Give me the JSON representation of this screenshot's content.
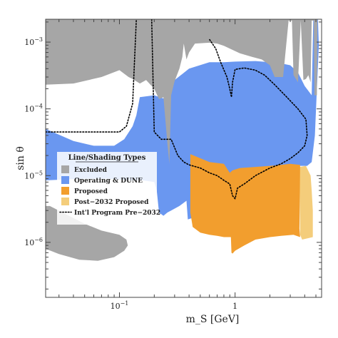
{
  "chart_data": {
    "type": "area",
    "title": "",
    "xlabel": "m_S [GeV]",
    "ylabel": "sin θ",
    "xscale": "log",
    "yscale": "log",
    "xlim": [
      0.023,
      5.6
    ],
    "ylim": [
      1.5e-07,
      0.0022
    ],
    "x_ticks": [
      {
        "value": 0.1,
        "base": "10",
        "exp": "−1"
      },
      {
        "value": 1,
        "label": "1"
      }
    ],
    "y_ticks": [
      {
        "value": 0.001,
        "base": "10",
        "exp": "−3"
      },
      {
        "value": 0.0001,
        "base": "10",
        "exp": "−4"
      },
      {
        "value": 1e-05,
        "base": "10",
        "exp": "−5"
      },
      {
        "value": 1e-06,
        "base": "10",
        "exp": "−6"
      }
    ],
    "grid": false,
    "legend": {
      "title": "Line/Shading Types",
      "placement": "center-left",
      "entries": [
        {
          "label": "Excluded",
          "kind": "patch",
          "color": "#a6a6a6"
        },
        {
          "label": "Operating & DUNE",
          "kind": "patch",
          "color": "#6a97f0"
        },
        {
          "label": "Proposed",
          "kind": "patch",
          "color": "#f29e2e"
        },
        {
          "label": "Post−2032 Proposed",
          "kind": "patch",
          "color": "#f4cd7b"
        },
        {
          "label": "Int'l Program Pre−2032",
          "kind": "dotted-line",
          "color": "#000000"
        }
      ]
    },
    "regions": [
      {
        "name": "Post−2032 Proposed",
        "color": "#f4cd7b",
        "points": [
          [
            3.6,
            1.35e-05
          ],
          [
            4.1,
            1.4e-05
          ],
          [
            4.5,
            1e-05
          ],
          [
            4.6,
            6e-06
          ],
          [
            4.7,
            3e-06
          ],
          [
            4.7,
            1.2e-06
          ],
          [
            3.8,
            1.1e-06
          ],
          [
            3.65,
            1.3e-06
          ]
        ]
      },
      {
        "name": "Operating & DUNE",
        "color": "#6a97f0",
        "points": [
          [
            0.023,
            5e-05
          ],
          [
            0.04,
            3.3e-05
          ],
          [
            0.06,
            2.8e-05
          ],
          [
            0.09,
            2.8e-05
          ],
          [
            0.11,
            3.5e-05
          ],
          [
            0.13,
            5.5e-05
          ],
          [
            0.14,
            8e-05
          ],
          [
            0.15,
            0.00015
          ],
          [
            0.2,
            0.00016
          ],
          [
            0.25,
            0.00014
          ],
          [
            0.28,
            0.00018
          ],
          [
            0.3,
            0.00027
          ],
          [
            0.4,
            0.0004
          ],
          [
            0.6,
            0.0005
          ],
          [
            0.8,
            0.0005
          ],
          [
            1,
            0.00051
          ],
          [
            1.5,
            0.00052
          ],
          [
            2,
            0.0005
          ],
          [
            2.5,
            0.00048
          ],
          [
            3,
            0.00045
          ],
          [
            3.5,
            0.00035
          ],
          [
            4,
            0.00022
          ],
          [
            4.6,
            0.00016
          ],
          [
            4.75,
            0.0023
          ],
          [
            5.2,
            0.0023
          ],
          [
            5.3,
            0.0009
          ],
          [
            5.1,
            0.0002
          ],
          [
            4.9,
            4e-05
          ],
          [
            4.6,
            1.6e-05
          ],
          [
            4.2,
            1.4e-05
          ],
          [
            3.5,
            1.4e-05
          ],
          [
            3.2,
            1.35e-05
          ],
          [
            2.8,
            1.3e-05
          ],
          [
            2,
            1.1e-05
          ],
          [
            1.5,
            9e-06
          ],
          [
            1.1,
            7e-06
          ],
          [
            0.9,
            8.2e-06
          ],
          [
            0.75,
            8e-06
          ],
          [
            0.6,
            7.6e-06
          ],
          [
            0.5,
            6.5e-06
          ],
          [
            0.44,
            4e-06
          ],
          [
            0.42,
            2.3e-06
          ],
          [
            0.39,
            2.2e-06
          ],
          [
            0.38,
            4.2e-06
          ],
          [
            0.33,
            3.5e-06
          ],
          [
            0.28,
            3e-06
          ],
          [
            0.26,
            2.8e-06
          ],
          [
            0.24,
            2.5e-06
          ],
          [
            0.22,
            2.8e-06
          ],
          [
            0.21,
            6e-06
          ],
          [
            0.2,
            8e-06
          ],
          [
            0.16,
            8.5e-06
          ],
          [
            0.12,
            8.5e-06
          ],
          [
            0.08,
            9e-06
          ],
          [
            0.05,
            9e-06
          ],
          [
            0.023,
            8.5e-06
          ]
        ]
      },
      {
        "name": "Excluded",
        "color": "#a6a6a6",
        "points": [
          [
            0.023,
            0.0022
          ],
          [
            5.15,
            0.0022
          ],
          [
            5.1,
            0.00016
          ],
          [
            4.85,
            0.00016
          ],
          [
            4.8,
            0.0021
          ],
          [
            4.6,
            0.0021
          ],
          [
            4.5,
            0.00025
          ],
          [
            4.3,
            0.00032
          ],
          [
            4.1,
            0.00028
          ],
          [
            3.9,
            0.00027
          ],
          [
            3.7,
            0.0021
          ],
          [
            3.5,
            0.00025
          ],
          [
            3.2,
            0.00032
          ],
          [
            3.1,
            0.0021
          ],
          [
            2.9,
            0.0021
          ],
          [
            2.6,
            0.0003
          ],
          [
            2.2,
            0.0003
          ],
          [
            2,
            0.00045
          ],
          [
            1.7,
            0.00055
          ],
          [
            1.4,
            0.0006
          ],
          [
            1.1,
            0.00068
          ],
          [
            0.9,
            0.0008
          ],
          [
            0.8,
            0.00088
          ],
          [
            0.7,
            0.00095
          ],
          [
            0.6,
            0.00098
          ],
          [
            0.45,
            0.00095
          ],
          [
            0.4,
            0.0007
          ],
          [
            0.38,
            0.00055
          ],
          [
            0.36,
            0.00095
          ],
          [
            0.35,
            0.0006
          ],
          [
            0.33,
            0.0004
          ],
          [
            0.3,
            0.00026
          ],
          [
            0.28,
            0.00016
          ],
          [
            0.27,
            1.5e-05
          ],
          [
            0.26,
            3e-05
          ],
          [
            0.24,
            0.00015
          ],
          [
            0.22,
            0.00014
          ],
          [
            0.2,
            0.0002
          ],
          [
            0.17,
            0.00027
          ],
          [
            0.15,
            0.00024
          ],
          [
            0.13,
            0.00028
          ],
          [
            0.12,
            0.0003
          ],
          [
            0.1,
            0.00038
          ],
          [
            0.07,
            0.0003
          ],
          [
            0.04,
            0.00024
          ],
          [
            0.023,
            0.00023
          ]
        ]
      },
      {
        "name": "Proposed",
        "color": "#f29e2e",
        "points": [
          [
            0.41,
            2.1e-05
          ],
          [
            0.6,
            1.6e-05
          ],
          [
            0.8,
            1.5e-05
          ],
          [
            0.9,
            1.1e-05
          ],
          [
            0.95,
            1.2e-05
          ],
          [
            1.1,
            1.3e-05
          ],
          [
            1.5,
            1.35e-05
          ],
          [
            2,
            1.4e-05
          ],
          [
            2.5,
            1.45e-05
          ],
          [
            3,
            1.5e-05
          ],
          [
            3.65,
            1.45e-05
          ],
          [
            3.6,
            1.6e-06
          ],
          [
            3.65,
            1.2e-06
          ],
          [
            3.2,
            1.3e-06
          ],
          [
            2.5,
            1.25e-06
          ],
          [
            2,
            1.2e-06
          ],
          [
            1.5,
            1.1e-06
          ],
          [
            1.2,
            9e-07
          ],
          [
            1,
            7.5e-07
          ],
          [
            0.95,
            6.8e-07
          ],
          [
            0.93,
            7e-07
          ],
          [
            0.92,
            1.2e-06
          ],
          [
            0.8,
            1.2e-06
          ],
          [
            0.7,
            1.25e-06
          ],
          [
            0.6,
            1.3e-06
          ],
          [
            0.5,
            1.4e-06
          ],
          [
            0.43,
            1.7e-06
          ],
          [
            0.41,
            2.8e-06
          ]
        ]
      },
      {
        "name": "Excluded (lower-left)",
        "color": "#a6a6a6",
        "points": [
          [
            0.023,
            3.5e-06
          ],
          [
            0.025,
            3.5e-06
          ],
          [
            0.035,
            2.6e-06
          ],
          [
            0.05,
            1.9e-06
          ],
          [
            0.07,
            1.5e-06
          ],
          [
            0.1,
            1.3e-06
          ],
          [
            0.115,
            1.1e-06
          ],
          [
            0.118,
            9e-07
          ],
          [
            0.11,
            7.5e-07
          ],
          [
            0.09,
            6e-07
          ],
          [
            0.065,
            5.3e-07
          ],
          [
            0.045,
            5.5e-07
          ],
          [
            0.03,
            6.7e-07
          ],
          [
            0.023,
            8e-07
          ]
        ]
      }
    ],
    "dotted_curves": [
      {
        "name": "Int'l Program Pre−2032",
        "points": [
          [
            0.023,
            4.5e-05
          ],
          [
            0.1,
            4.5e-05
          ],
          [
            0.115,
            5.5e-05
          ],
          [
            0.13,
            0.00012
          ],
          [
            0.14,
            0.0022
          ]
        ]
      },
      {
        "name": "Int'l Program Pre−2032",
        "points": [
          [
            0.19,
            0.0022
          ],
          [
            0.2,
            4.5e-05
          ],
          [
            0.23,
            3.5e-05
          ],
          [
            0.28,
            3.5e-05
          ],
          [
            0.32,
            2e-05
          ],
          [
            0.36,
            1.6e-05
          ],
          [
            0.4,
            1.45e-05
          ],
          [
            0.5,
            1.3e-05
          ],
          [
            0.6,
            1.1e-05
          ],
          [
            0.7,
            1e-05
          ],
          [
            0.8,
            8.5e-06
          ],
          [
            0.9,
            7.5e-06
          ],
          [
            0.95,
            5e-06
          ],
          [
            1,
            4.5e-06
          ],
          [
            1.05,
            6.5e-06
          ],
          [
            1.2,
            7.5e-06
          ],
          [
            1.5,
            1e-05
          ],
          [
            2,
            1.3e-05
          ],
          [
            2.5,
            1.5e-05
          ],
          [
            3,
            1.8e-05
          ],
          [
            3.5,
            2.2e-05
          ],
          [
            4,
            2.8e-05
          ],
          [
            4.2,
            4e-05
          ],
          [
            4.1,
            7e-05
          ],
          [
            3.5,
            0.0001
          ],
          [
            2.8,
            0.00015
          ],
          [
            2.2,
            0.00023
          ],
          [
            1.8,
            0.00032
          ],
          [
            1.5,
            0.00038
          ],
          [
            1.2,
            0.00041
          ],
          [
            1,
            0.00039
          ],
          [
            0.95,
            0.00025
          ],
          [
            0.93,
            0.00015
          ],
          [
            0.9,
            0.0002
          ],
          [
            0.85,
            0.0003
          ],
          [
            0.75,
            0.0005
          ],
          [
            0.68,
            0.0008
          ],
          [
            0.6,
            0.0011
          ]
        ]
      }
    ]
  }
}
